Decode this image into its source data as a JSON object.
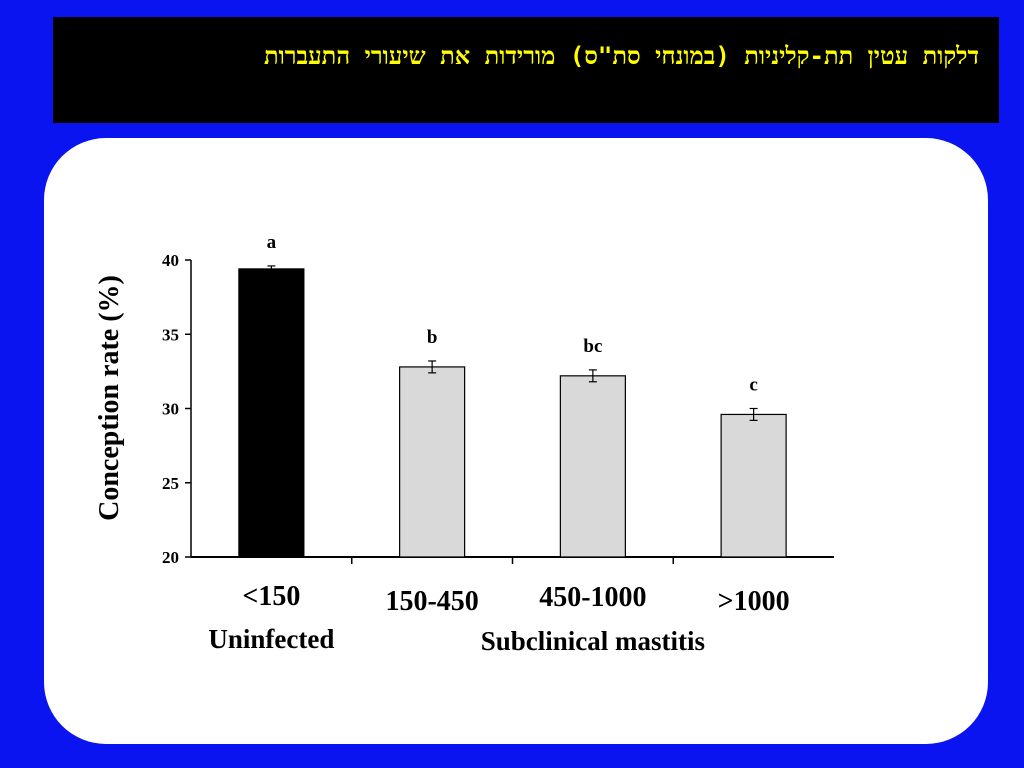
{
  "slide": {
    "title": "דלקות עטין תת-קליניות (במונחי סת\"ס) מורידות את שיעורי התעברות"
  },
  "chart_data": {
    "type": "bar",
    "categories": [
      "<150",
      "150-450",
      "450-1000",
      ">1000"
    ],
    "values": [
      39.4,
      32.8,
      32.2,
      29.6
    ],
    "errors": [
      0.2,
      0.4,
      0.4,
      0.4
    ],
    "significance": [
      "a",
      "b",
      "bc",
      "c"
    ],
    "group_labels": [
      "Uninfected",
      "Subclinical mastitis"
    ],
    "ylabel": "Conception rate (%)",
    "ylim": [
      20,
      40
    ],
    "yticks": [
      "20",
      "25",
      "30",
      "35",
      "40"
    ],
    "colors": {
      "uninfected": "#000000",
      "subclinical": "#d9d9d9"
    },
    "grid": false
  }
}
